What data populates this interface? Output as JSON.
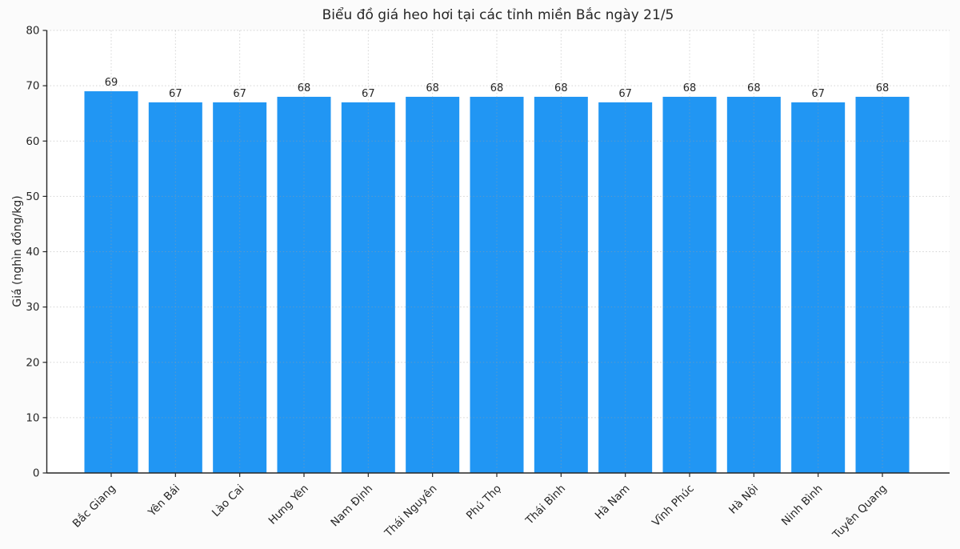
{
  "figure": {
    "background_color": "#fbfbfb",
    "plot_background_color": "#ffffff"
  },
  "chart_data": {
    "type": "bar",
    "title": "Biểu đồ giá heo hơi tại các tỉnh miền Bắc ngày 21/5",
    "xlabel": "",
    "ylabel": "Giá (nghìn đồng/kg)",
    "categories": [
      "Bắc Giang",
      "Yên Bái",
      "Lào Cai",
      "Hưng Yên",
      "Nam Định",
      "Thái Nguyên",
      "Phú Thọ",
      "Thái Bình",
      "Hà Nam",
      "Vĩnh Phúc",
      "Hà Nội",
      "Ninh Bình",
      "Tuyên Quang"
    ],
    "values": [
      69,
      67,
      67,
      68,
      67,
      68,
      68,
      68,
      67,
      68,
      68,
      67,
      68
    ],
    "bar_value_labels": [
      "69",
      "67",
      "67",
      "68",
      "67",
      "68",
      "68",
      "68",
      "67",
      "68",
      "68",
      "67",
      "68"
    ],
    "ylim": [
      0,
      80
    ],
    "yticks": [
      0,
      10,
      20,
      30,
      40,
      50,
      60,
      70,
      80
    ],
    "grid": true,
    "grid_style": "dotted",
    "legend": "none",
    "x_tick_rotation": 45,
    "bar_color": "#2196F3",
    "grid_color": "#9e9e9e",
    "axis_color": "#262626",
    "text_color": "#262626"
  }
}
